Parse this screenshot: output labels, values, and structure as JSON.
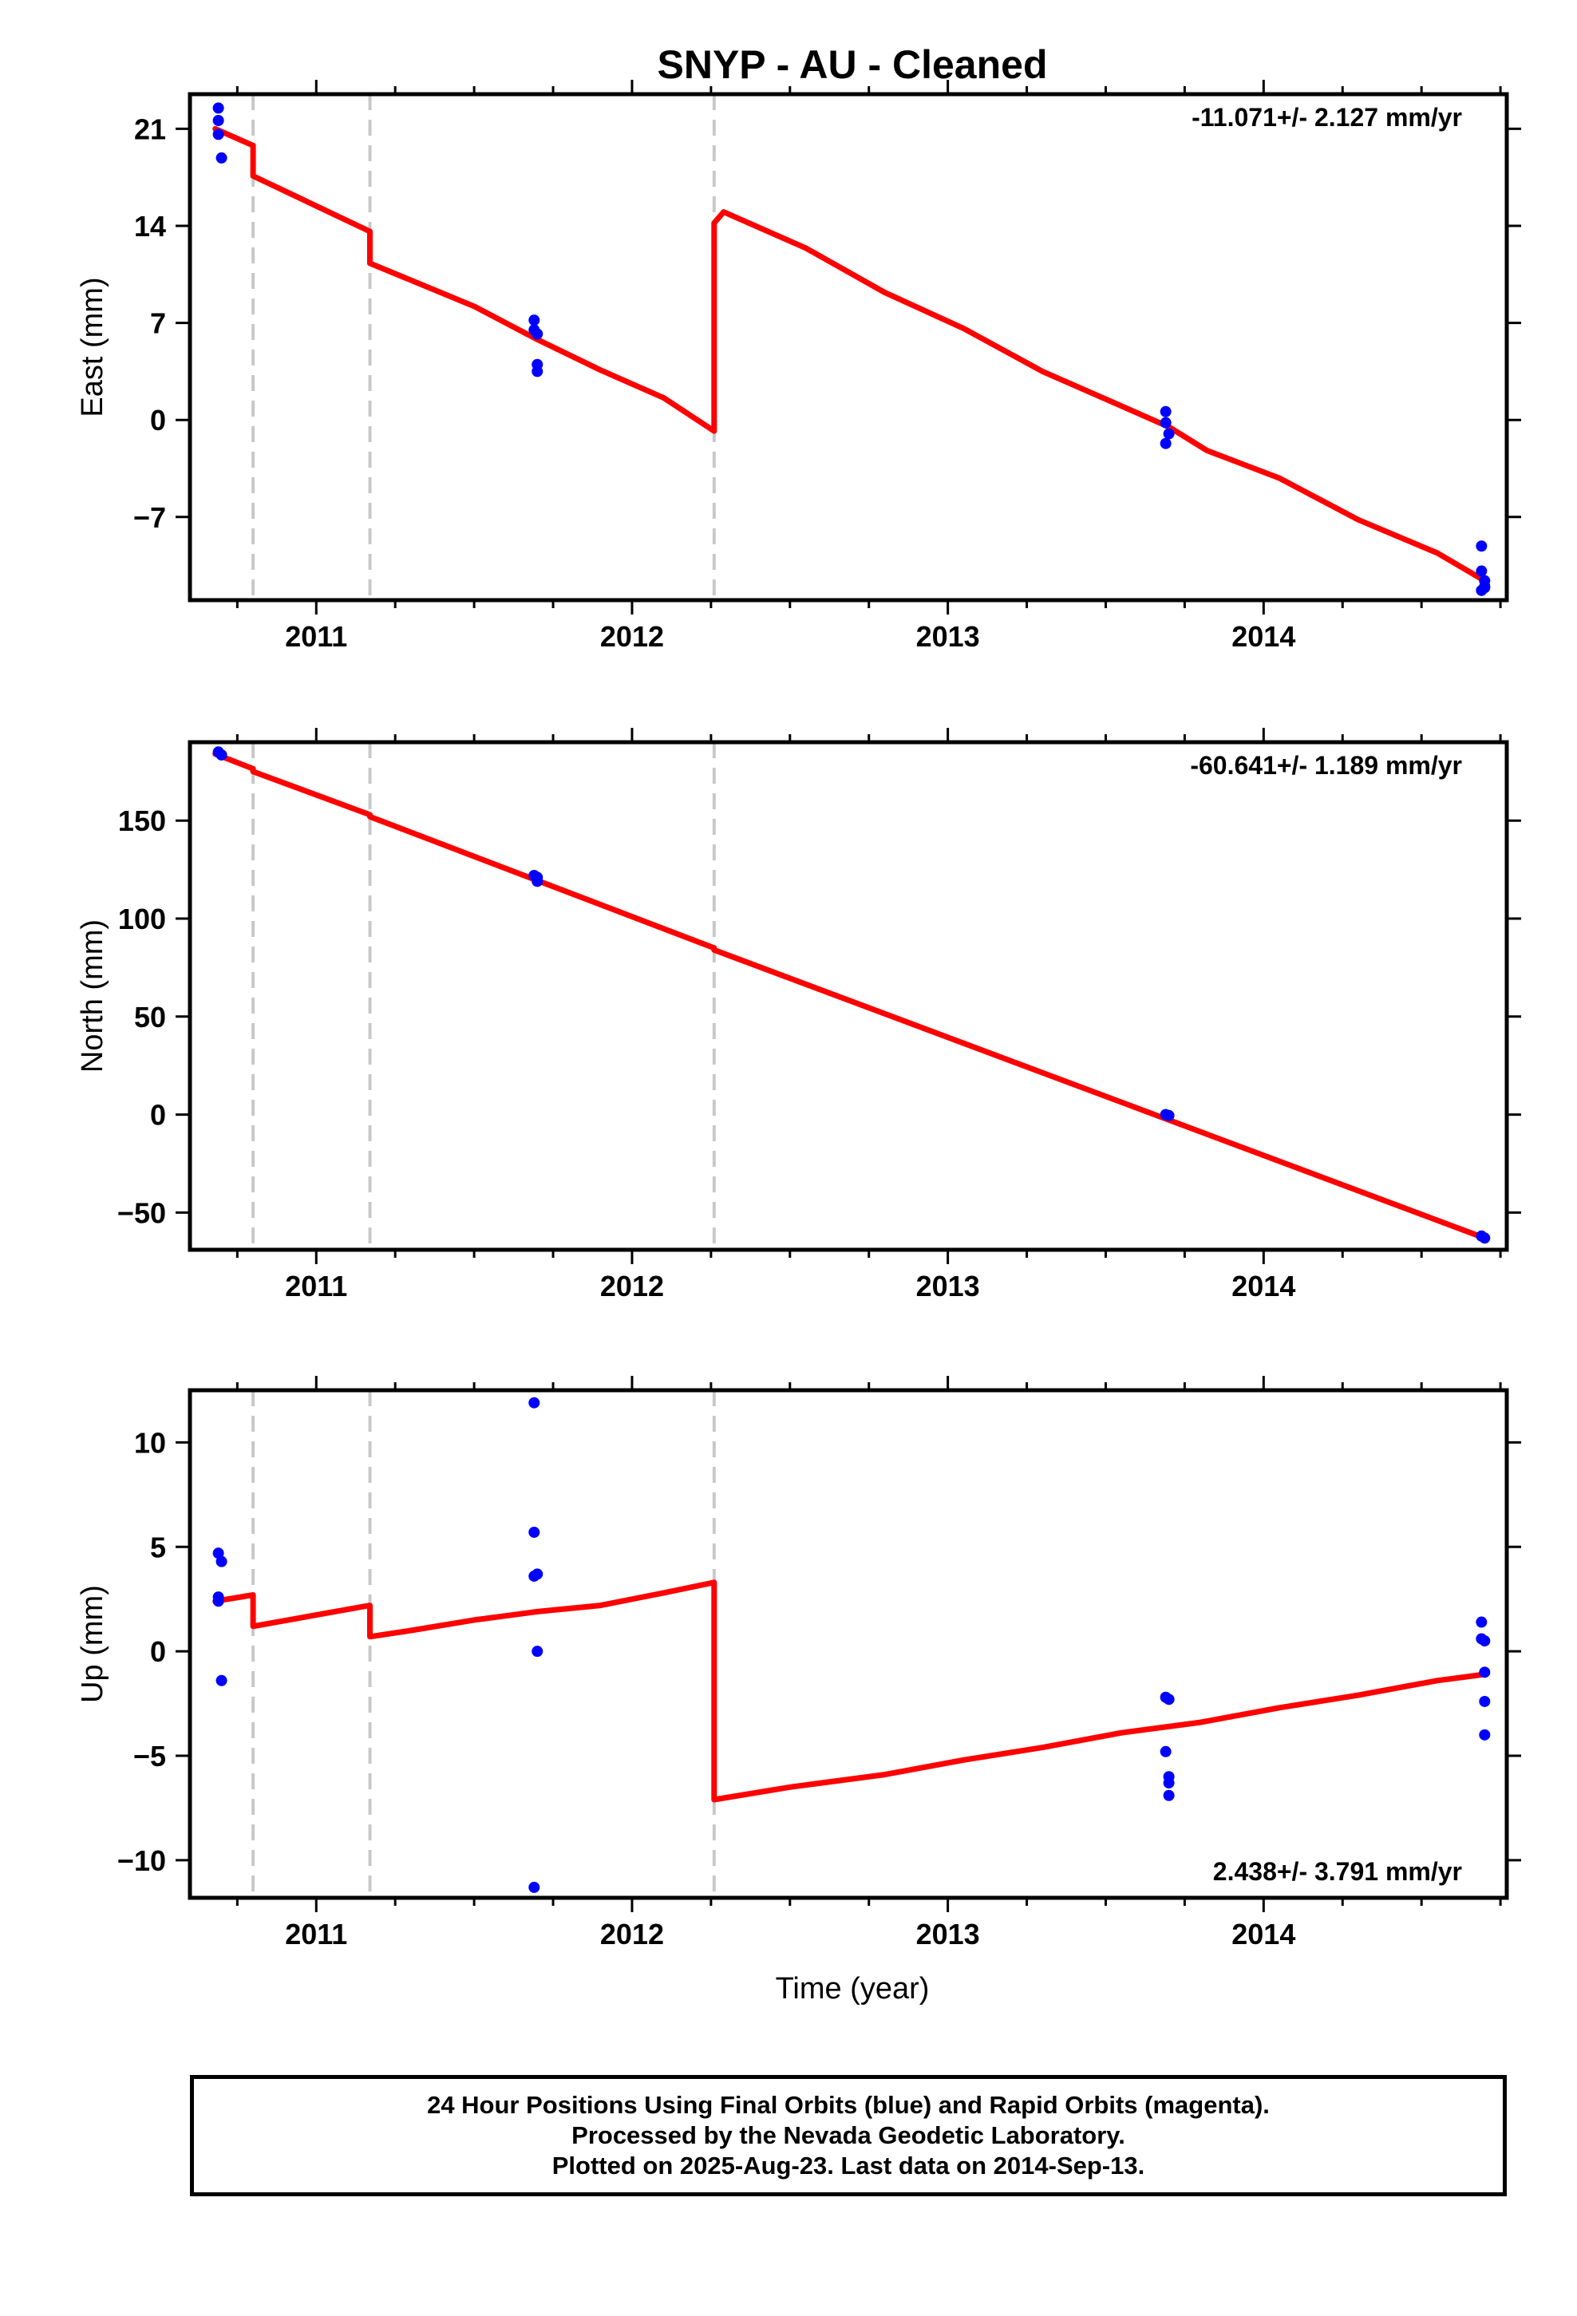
{
  "chart_data": {
    "type": "line",
    "title": "SNYP  - AU - Cleaned",
    "xlabel": "Time (year)",
    "xlim": [
      2010.6,
      2014.77
    ],
    "xticks": [
      2011,
      2012,
      2013,
      2014
    ],
    "xtick_labels": [
      "2011",
      "2012",
      "2013",
      "2014"
    ],
    "step_lines": [
      2010.8,
      2011.17,
      2012.26
    ],
    "colors": {
      "data": "#0000ff",
      "model": "#ff0000",
      "steps": "#c8c8c8",
      "frame": "#000000"
    },
    "panels": [
      {
        "ylabel": "East (mm)",
        "ylim": [
          -13,
          23.5
        ],
        "yticks": [
          21,
          14,
          7,
          0,
          -7
        ],
        "ytick_labels": [
          "21",
          "14",
          "7",
          "0",
          "−7"
        ],
        "rate_label": "-11.071+/- 2.127 mm/yr",
        "rate_position": "top-right",
        "model": [
          [
            2010.68,
            21.0
          ],
          [
            2010.8,
            19.8
          ],
          [
            2010.8,
            17.6
          ],
          [
            2011.17,
            13.6
          ],
          [
            2011.17,
            11.3
          ],
          [
            2011.5,
            8.2
          ],
          [
            2011.7,
            5.8
          ],
          [
            2011.9,
            3.6
          ],
          [
            2012.1,
            1.6
          ],
          [
            2012.26,
            -0.8
          ],
          [
            2012.26,
            14.2
          ],
          [
            2012.29,
            15.0
          ],
          [
            2012.55,
            12.4
          ],
          [
            2012.8,
            9.2
          ],
          [
            2013.05,
            6.6
          ],
          [
            2013.3,
            3.5
          ],
          [
            2013.55,
            1.0
          ],
          [
            2013.7,
            -0.5
          ],
          [
            2013.82,
            -2.2
          ],
          [
            2014.05,
            -4.2
          ],
          [
            2014.3,
            -7.2
          ],
          [
            2014.55,
            -9.6
          ],
          [
            2014.7,
            -11.6
          ]
        ],
        "points": [
          [
            2010.69,
            22.5
          ],
          [
            2010.69,
            21.6
          ],
          [
            2010.69,
            20.6
          ],
          [
            2010.7,
            18.9
          ],
          [
            2011.69,
            7.2
          ],
          [
            2011.69,
            6.5
          ],
          [
            2011.7,
            6.2
          ],
          [
            2011.7,
            4.0
          ],
          [
            2011.7,
            3.5
          ],
          [
            2013.69,
            0.6
          ],
          [
            2013.69,
            -0.2
          ],
          [
            2013.7,
            -1.0
          ],
          [
            2013.69,
            -1.7
          ],
          [
            2014.69,
            -9.1
          ],
          [
            2014.69,
            -10.9
          ],
          [
            2014.7,
            -11.6
          ],
          [
            2014.7,
            -12.0
          ],
          [
            2014.69,
            -12.3
          ],
          [
            2014.7,
            -12.1
          ]
        ]
      },
      {
        "ylabel": "North (mm)",
        "ylim": [
          -69,
          190
        ],
        "yticks": [
          150,
          100,
          50,
          0,
          -50
        ],
        "ytick_labels": [
          "150",
          "100",
          "50",
          "0",
          "−50"
        ],
        "rate_label": "-60.641+/- 1.189 mm/yr",
        "rate_position": "top-right",
        "model": [
          [
            2010.68,
            184.0
          ],
          [
            2010.8,
            176.5
          ],
          [
            2010.8,
            175.0
          ],
          [
            2011.17,
            153.0
          ],
          [
            2011.17,
            152.0
          ],
          [
            2012.26,
            85.0
          ],
          [
            2012.26,
            84.0
          ],
          [
            2014.7,
            -63.0
          ]
        ],
        "points": [
          [
            2010.69,
            185.0
          ],
          [
            2010.7,
            183.5
          ],
          [
            2011.69,
            122.0
          ],
          [
            2011.7,
            121.0
          ],
          [
            2011.7,
            119.0
          ],
          [
            2013.69,
            0.0
          ],
          [
            2013.7,
            -0.5
          ],
          [
            2014.69,
            -62.0
          ],
          [
            2014.7,
            -63.0
          ]
        ]
      },
      {
        "ylabel": "Up (mm)",
        "ylim": [
          -11.8,
          12.5
        ],
        "yticks": [
          10,
          5,
          0,
          -5,
          -10
        ],
        "ytick_labels": [
          "10",
          "5",
          "0",
          "−5",
          "−10"
        ],
        "rate_label": "2.438+/- 3.791 mm/yr",
        "rate_position": "bottom-right",
        "model": [
          [
            2010.68,
            2.4
          ],
          [
            2010.8,
            2.7
          ],
          [
            2010.8,
            1.2
          ],
          [
            2011.17,
            2.2
          ],
          [
            2011.17,
            0.7
          ],
          [
            2011.3,
            1.0
          ],
          [
            2011.5,
            1.5
          ],
          [
            2011.7,
            1.9
          ],
          [
            2011.9,
            2.2
          ],
          [
            2012.1,
            2.8
          ],
          [
            2012.26,
            3.3
          ],
          [
            2012.26,
            -7.1
          ],
          [
            2012.5,
            -6.5
          ],
          [
            2012.8,
            -5.9
          ],
          [
            2013.05,
            -5.2
          ],
          [
            2013.3,
            -4.6
          ],
          [
            2013.55,
            -3.9
          ],
          [
            2013.8,
            -3.4
          ],
          [
            2014.05,
            -2.7
          ],
          [
            2014.3,
            -2.1
          ],
          [
            2014.55,
            -1.4
          ],
          [
            2014.7,
            -1.1
          ]
        ],
        "points": [
          [
            2010.69,
            4.7
          ],
          [
            2010.7,
            4.3
          ],
          [
            2010.69,
            2.6
          ],
          [
            2010.69,
            2.4
          ],
          [
            2010.7,
            -1.4
          ],
          [
            2011.69,
            11.9
          ],
          [
            2011.69,
            5.7
          ],
          [
            2011.7,
            3.7
          ],
          [
            2011.69,
            3.6
          ],
          [
            2011.7,
            0.0
          ],
          [
            2011.69,
            -11.3
          ],
          [
            2013.69,
            -2.2
          ],
          [
            2013.7,
            -2.3
          ],
          [
            2013.69,
            -4.8
          ],
          [
            2013.7,
            -6.0
          ],
          [
            2013.7,
            -6.3
          ],
          [
            2013.7,
            -6.9
          ],
          [
            2014.69,
            1.4
          ],
          [
            2014.69,
            0.6
          ],
          [
            2014.7,
            0.5
          ],
          [
            2014.7,
            -1.0
          ],
          [
            2014.7,
            -2.4
          ],
          [
            2014.7,
            -4.0
          ]
        ]
      }
    ]
  },
  "footer": {
    "line1": "24 Hour Positions Using Final Orbits (blue) and Rapid Orbits (magenta).",
    "line2": "Processed by the Nevada Geodetic Laboratory.",
    "line3": "Plotted on 2025-Aug-23. Last data on 2014-Sep-13."
  }
}
